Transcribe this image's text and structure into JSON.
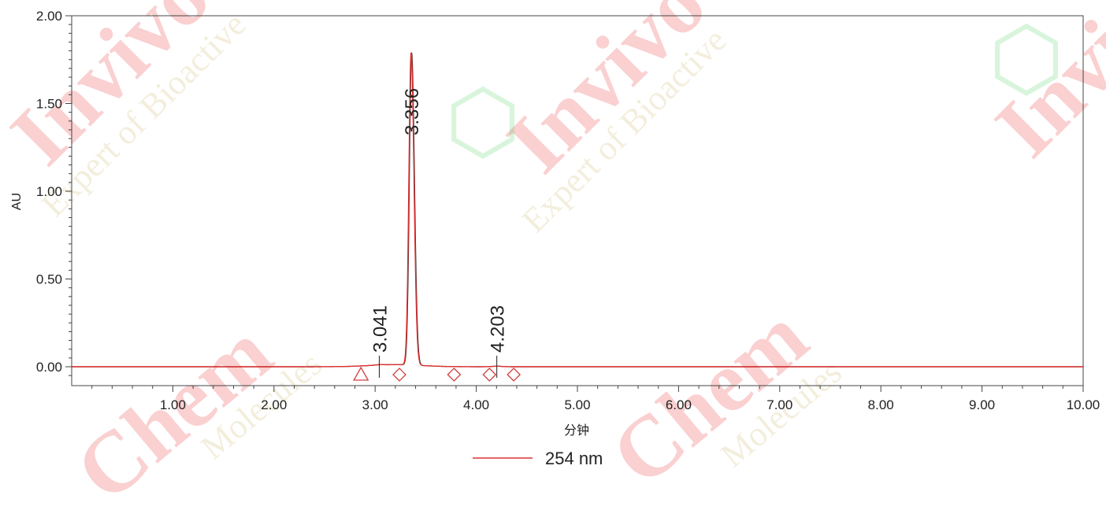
{
  "chart_data": {
    "type": "line",
    "title": "",
    "xlabel": "分钟",
    "ylabel": "AU",
    "xlim": [
      0,
      10
    ],
    "ylim": [
      -0.1,
      2.0
    ],
    "x_ticks": [
      "1.00",
      "2.00",
      "3.00",
      "4.00",
      "5.00",
      "6.00",
      "7.00",
      "8.00",
      "9.00",
      "10.00"
    ],
    "y_ticks": [
      "0.00",
      "0.50",
      "1.00",
      "1.50",
      "2.00"
    ],
    "grid": false,
    "legend": {
      "position": "bottom-center",
      "entries": [
        "254 nm"
      ]
    },
    "series": [
      {
        "name": "254 nm",
        "color": "#e03030",
        "peaks": [
          {
            "rt": 3.041,
            "height": 0.002
          },
          {
            "rt": 3.356,
            "height": 1.78
          },
          {
            "rt": 4.203,
            "height": 0.003
          }
        ]
      }
    ],
    "peak_labels": [
      "3.041",
      "3.356",
      "4.203"
    ],
    "markers": [
      {
        "shape": "triangle",
        "x": 2.86
      },
      {
        "shape": "diamond",
        "x": 3.24
      },
      {
        "shape": "diamond",
        "x": 3.78
      },
      {
        "shape": "diamond",
        "x": 4.13
      },
      {
        "shape": "diamond",
        "x": 4.37
      }
    ]
  },
  "colors": {
    "trace": "#e03030",
    "axis": "#444444",
    "marker": "#d04040"
  },
  "watermark": {
    "brand_words": [
      "Invivo",
      "Chem"
    ],
    "tagline": "Expert of Bioactive",
    "sub": "Molecules"
  }
}
